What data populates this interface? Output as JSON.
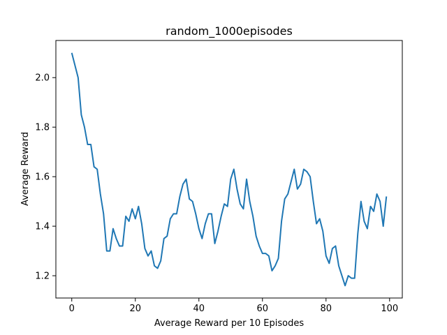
{
  "chart_data": {
    "type": "line",
    "title": "random_1000episodes",
    "xlabel": "Average Reward per 10 Episodes",
    "ylabel": "Average Reward",
    "xlim": [
      -5,
      104
    ],
    "ylim": [
      1.11,
      2.15
    ],
    "xticks": [
      0,
      20,
      40,
      60,
      80,
      100
    ],
    "yticks": [
      1.2,
      1.4,
      1.6,
      1.8,
      2.0
    ],
    "ytick_labels": [
      "1.2",
      "1.4",
      "1.6",
      "1.8",
      "2.0"
    ],
    "grid": false,
    "series": [
      {
        "color": "#1f77b4",
        "x": [
          0,
          1,
          2,
          3,
          4,
          5,
          6,
          7,
          8,
          9,
          10,
          11,
          12,
          13,
          14,
          15,
          16,
          17,
          18,
          19,
          20,
          21,
          22,
          23,
          24,
          25,
          26,
          27,
          28,
          29,
          30,
          31,
          32,
          33,
          34,
          35,
          36,
          37,
          38,
          39,
          40,
          41,
          42,
          43,
          44,
          45,
          46,
          47,
          48,
          49,
          50,
          51,
          52,
          53,
          54,
          55,
          56,
          57,
          58,
          59,
          60,
          61,
          62,
          63,
          64,
          65,
          66,
          67,
          68,
          69,
          70,
          71,
          72,
          73,
          74,
          75,
          76,
          77,
          78,
          79,
          80,
          81,
          82,
          83,
          84,
          85,
          86,
          87,
          88,
          89,
          90,
          91,
          92,
          93,
          94,
          95,
          96,
          97,
          98,
          99
        ],
        "y": [
          2.1,
          2.05,
          2.0,
          1.85,
          1.8,
          1.73,
          1.73,
          1.64,
          1.63,
          1.53,
          1.45,
          1.3,
          1.3,
          1.39,
          1.35,
          1.32,
          1.32,
          1.44,
          1.42,
          1.47,
          1.43,
          1.48,
          1.41,
          1.31,
          1.28,
          1.3,
          1.24,
          1.23,
          1.26,
          1.35,
          1.36,
          1.43,
          1.45,
          1.45,
          1.52,
          1.57,
          1.59,
          1.51,
          1.5,
          1.45,
          1.39,
          1.35,
          1.41,
          1.45,
          1.45,
          1.33,
          1.38,
          1.44,
          1.49,
          1.48,
          1.59,
          1.63,
          1.55,
          1.49,
          1.47,
          1.59,
          1.5,
          1.44,
          1.36,
          1.32,
          1.29,
          1.29,
          1.28,
          1.22,
          1.24,
          1.27,
          1.42,
          1.51,
          1.53,
          1.58,
          1.63,
          1.55,
          1.57,
          1.63,
          1.62,
          1.6,
          1.5,
          1.41,
          1.43,
          1.38,
          1.28,
          1.25,
          1.31,
          1.32,
          1.24,
          1.2,
          1.16,
          1.2,
          1.19,
          1.19,
          1.37,
          1.5,
          1.42,
          1.39,
          1.48,
          1.46,
          1.53,
          1.5,
          1.4,
          1.52
        ]
      }
    ]
  }
}
